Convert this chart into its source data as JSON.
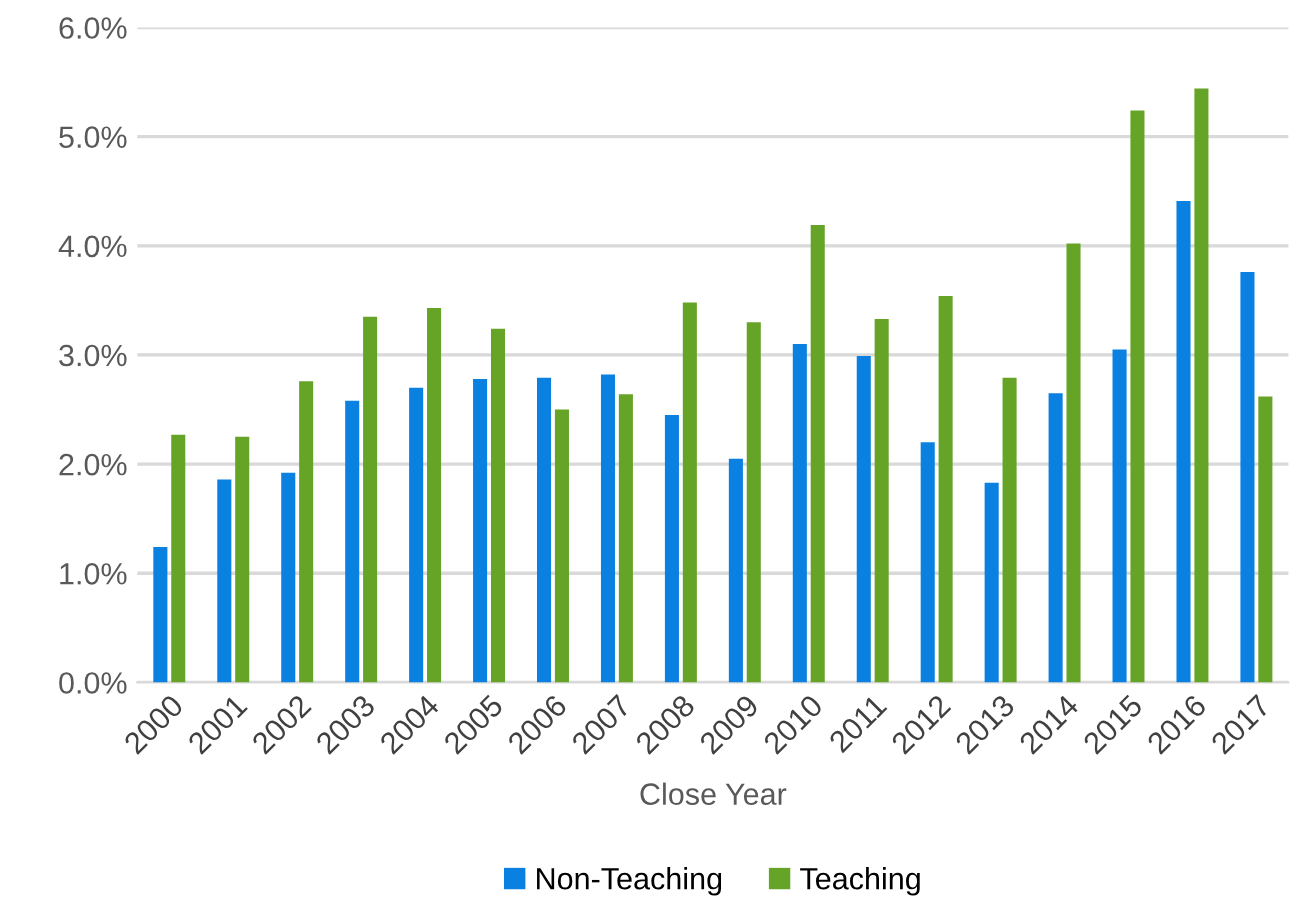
{
  "chart_data": {
    "type": "bar",
    "xlabel": "Close Year",
    "categories": [
      "2000",
      "2001",
      "2002",
      "2003",
      "2004",
      "2005",
      "2006",
      "2007",
      "2008",
      "2009",
      "2010",
      "2011",
      "2012",
      "2013",
      "2014",
      "2015",
      "2016",
      "2017"
    ],
    "series": [
      {
        "name": "Non-Teaching",
        "color": "#0a80e0",
        "values": [
          1.24,
          1.86,
          1.92,
          2.58,
          2.7,
          2.78,
          2.79,
          2.82,
          2.45,
          2.05,
          3.1,
          2.99,
          2.2,
          1.83,
          2.65,
          3.05,
          4.41,
          3.76
        ]
      },
      {
        "name": "Teaching",
        "color": "#66a428",
        "values": [
          2.27,
          2.25,
          2.76,
          3.35,
          3.43,
          3.24,
          2.5,
          2.64,
          3.48,
          3.3,
          4.19,
          3.33,
          3.54,
          2.79,
          4.02,
          5.24,
          5.44,
          2.62
        ]
      }
    ],
    "ylim": [
      0,
      6
    ],
    "yticks": [
      {
        "value": 0,
        "label": "0.0%"
      },
      {
        "value": 1,
        "label": "1.0%"
      },
      {
        "value": 2,
        "label": "2.0%"
      },
      {
        "value": 3,
        "label": "3.0%"
      },
      {
        "value": 4,
        "label": "4.0%"
      },
      {
        "value": 5,
        "label": "5.0%"
      },
      {
        "value": 6,
        "label": "6.0%"
      }
    ],
    "grid": "y",
    "legend": "bottom"
  }
}
